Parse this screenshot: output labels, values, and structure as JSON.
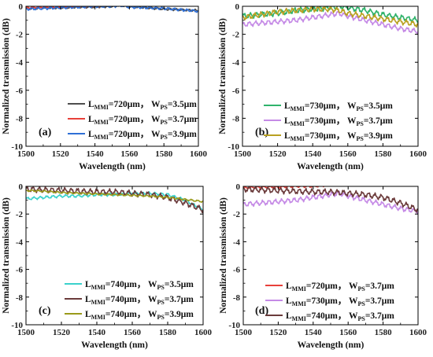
{
  "chart_data": [
    {
      "panel": "(a)",
      "type": "line",
      "xlabel": "Wavelength (nm)",
      "ylabel": "Normalized transmission (dB)",
      "xlim": [
        1500,
        1600
      ],
      "ylim": [
        -10,
        0
      ],
      "xticks": [
        1500,
        1520,
        1540,
        1560,
        1580,
        1600
      ],
      "yticks": [
        0,
        -2,
        -4,
        -6,
        -8,
        -10
      ],
      "legend_position": "bottom-right",
      "series": [
        {
          "name": "L_MMI=720μm， W_PS=3.5μm",
          "legend": {
            "a": "L",
            "as": "MMI",
            "b": "=720μm，  W",
            "bs": "PS",
            "c": "=3.5μm"
          },
          "color": "#4d4d4d",
          "x": [
            1500,
            1510,
            1520,
            1530,
            1540,
            1550,
            1555,
            1560,
            1570,
            1580,
            1590,
            1600
          ],
          "y": [
            -0.15,
            -0.1,
            -0.1,
            -0.05,
            -0.05,
            0.0,
            0.1,
            0.0,
            -0.1,
            -0.2,
            -0.25,
            -0.3
          ],
          "ripple": 0.06
        },
        {
          "name": "L_MMI=720μm， W_PS=3.7μm",
          "legend": {
            "a": "L",
            "as": "MMI",
            "b": "=720μm，  W",
            "bs": "PS",
            "c": "=3.7μm"
          },
          "color": "#e8403a",
          "x": [
            1500,
            1510,
            1520,
            1530,
            1540,
            1550,
            1555,
            1560,
            1570,
            1580,
            1590,
            1600
          ],
          "y": [
            -0.1,
            -0.05,
            -0.05,
            0.0,
            0.0,
            0.1,
            0.2,
            0.15,
            0.1,
            0.2,
            0.2,
            0.1
          ],
          "ripple": 0.06
        },
        {
          "name": "L_MMI=720μm， W_PS=3.9μm",
          "legend": {
            "a": "L",
            "as": "MMI",
            "b": "=720μm，  W",
            "bs": "PS",
            "c": "=3.9μm"
          },
          "color": "#2f6fd6",
          "x": [
            1500,
            1510,
            1520,
            1530,
            1540,
            1550,
            1555,
            1560,
            1570,
            1580,
            1590,
            1600
          ],
          "y": [
            -0.2,
            -0.15,
            -0.1,
            -0.05,
            0.0,
            0.0,
            0.05,
            -0.05,
            -0.1,
            -0.15,
            -0.25,
            -0.35
          ],
          "ripple": 0.07
        }
      ]
    },
    {
      "panel": "(b)",
      "type": "line",
      "xlabel": "Wavelength (nm)",
      "ylabel": "Normalized transmission (dB)",
      "xlim": [
        1500,
        1600
      ],
      "ylim": [
        -10,
        0
      ],
      "xticks": [
        1500,
        1520,
        1540,
        1560,
        1580,
        1600
      ],
      "yticks": [
        0,
        -2,
        -4,
        -6,
        -8,
        -10
      ],
      "legend_position": "bottom-right",
      "series": [
        {
          "name": "L_MMI=730μm， W_PS=3.5μm",
          "legend": {
            "a": "L",
            "as": "MMI",
            "b": "=730μm，  W",
            "bs": "PS",
            "c": "=3.5μm"
          },
          "color": "#2fb36b",
          "x": [
            1500,
            1510,
            1520,
            1530,
            1540,
            1550,
            1555,
            1560,
            1570,
            1580,
            1590,
            1600
          ],
          "y": [
            -0.7,
            -0.6,
            -0.5,
            -0.3,
            -0.2,
            -0.1,
            0.0,
            -0.1,
            -0.3,
            -0.6,
            -0.8,
            -1.0
          ],
          "ripple": 0.15
        },
        {
          "name": "L_MMI=730μm， W_PS=3.7μm",
          "legend": {
            "a": "L",
            "as": "MMI",
            "b": "=730μm，  W",
            "bs": "PS",
            "c": "=3.7μm"
          },
          "color": "#c58ae6",
          "x": [
            1500,
            1510,
            1520,
            1530,
            1540,
            1550,
            1555,
            1560,
            1570,
            1580,
            1590,
            1600
          ],
          "y": [
            -1.3,
            -1.2,
            -1.1,
            -1.0,
            -0.8,
            -0.6,
            -0.5,
            -0.7,
            -1.0,
            -1.3,
            -1.6,
            -1.8
          ],
          "ripple": 0.14
        },
        {
          "name": "L_MMI=730μm， W_PS=3.9μm",
          "legend": {
            "a": "L",
            "as": "MMI",
            "b": "=730μm，  W",
            "bs": "PS",
            "c": "=3.9μm"
          },
          "color": "#b9a021",
          "x": [
            1500,
            1510,
            1520,
            1530,
            1540,
            1550,
            1555,
            1560,
            1570,
            1580,
            1590,
            1600
          ],
          "y": [
            -0.8,
            -0.6,
            -0.4,
            -0.3,
            -0.2,
            -0.2,
            -0.3,
            -0.5,
            -0.7,
            -0.9,
            -1.1,
            -1.3
          ],
          "ripple": 0.15
        }
      ]
    },
    {
      "panel": "(c)",
      "type": "line",
      "xlabel": "Wavelength (nm)",
      "ylabel": "Normalized transmission (dB)",
      "xlim": [
        1500,
        1600
      ],
      "ylim": [
        -10,
        0
      ],
      "xticks": [
        1500,
        1520,
        1540,
        1560,
        1580,
        1600
      ],
      "yticks": [
        0,
        -2,
        -4,
        -6,
        -8,
        -10
      ],
      "legend_position": "bottom-left",
      "series": [
        {
          "name": "L_MMI=740μm， W_PS=3.5μm",
          "legend": {
            "a": "L",
            "as": "MMI",
            "b": "=740μm，  W",
            "bs": "PS",
            "c": "=3.5μm"
          },
          "color": "#3ad1cc",
          "x": [
            1500,
            1510,
            1520,
            1530,
            1540,
            1550,
            1560,
            1570,
            1580,
            1590,
            1600
          ],
          "y": [
            -0.9,
            -0.8,
            -0.7,
            -0.7,
            -0.6,
            -0.6,
            -0.5,
            -0.5,
            -0.6,
            -1.0,
            -1.7
          ],
          "ripple": 0.08
        },
        {
          "name": "L_MMI=740μm， W_PS=3.7μm",
          "legend": {
            "a": "L",
            "as": "MMI",
            "b": "=740μm，  W",
            "bs": "PS",
            "c": "=3.7μm"
          },
          "color": "#6b3b3b",
          "x": [
            1500,
            1510,
            1520,
            1530,
            1540,
            1550,
            1560,
            1570,
            1580,
            1590,
            1600
          ],
          "y": [
            -0.2,
            -0.25,
            -0.3,
            -0.35,
            -0.4,
            -0.4,
            -0.5,
            -0.6,
            -0.8,
            -1.2,
            -1.7
          ],
          "ripple": 0.16
        },
        {
          "name": "L_MMI=740μm， W_PS=3.9μm",
          "legend": {
            "a": "L",
            "as": "MMI",
            "b": "=740μm，  W",
            "bs": "PS",
            "c": "=3.9μm"
          },
          "color": "#9a9a1a",
          "x": [
            1500,
            1510,
            1520,
            1530,
            1540,
            1550,
            1560,
            1570,
            1580,
            1590,
            1600
          ],
          "y": [
            -0.3,
            -0.35,
            -0.45,
            -0.5,
            -0.55,
            -0.6,
            -0.65,
            -0.7,
            -0.8,
            -0.95,
            -1.1
          ],
          "ripple": 0.05
        }
      ]
    },
    {
      "panel": "(d)",
      "type": "line",
      "xlabel": "Wavelength (nm)",
      "ylabel": "Normalized transmission (dB)",
      "xlim": [
        1500,
        1600
      ],
      "ylim": [
        -10,
        0
      ],
      "xticks": [
        1500,
        1520,
        1540,
        1560,
        1580,
        1600
      ],
      "yticks": [
        0,
        -2,
        -4,
        -6,
        -8,
        -10
      ],
      "legend_position": "bottom-right",
      "series": [
        {
          "name": "L_MMI=720μm， W_PS=3.7μm",
          "legend": {
            "a": "L",
            "as": "MMI",
            "b": "=720μm，  W",
            "bs": "PS",
            "c": "=3.7μm"
          },
          "color": "#e8403a",
          "x": [
            1500,
            1510,
            1520,
            1530,
            1540,
            1550,
            1560,
            1570,
            1580,
            1590,
            1600
          ],
          "y": [
            -0.1,
            -0.05,
            -0.05,
            0.0,
            0.0,
            0.1,
            0.2,
            0.15,
            0.25,
            0.2,
            0.1
          ],
          "ripple": 0.06
        },
        {
          "name": "L_MMI=730μm， W_PS=3.7μm",
          "legend": {
            "a": "L",
            "as": "MMI",
            "b": "=730μm，  W",
            "bs": "PS",
            "c": "=3.7μm"
          },
          "color": "#c58ae6",
          "x": [
            1500,
            1510,
            1520,
            1530,
            1540,
            1550,
            1555,
            1560,
            1570,
            1580,
            1590,
            1600
          ],
          "y": [
            -1.3,
            -1.2,
            -1.1,
            -1.0,
            -0.8,
            -0.6,
            -0.5,
            -0.7,
            -1.0,
            -1.3,
            -1.6,
            -1.8
          ],
          "ripple": 0.14
        },
        {
          "name": "L_MMI=740μm， W_PS=3.7μm",
          "legend": {
            "a": "L",
            "as": "MMI",
            "b": "=740μm，  W",
            "bs": "PS",
            "c": "=3.7μm"
          },
          "color": "#6b3b3b",
          "x": [
            1500,
            1510,
            1520,
            1530,
            1540,
            1550,
            1560,
            1570,
            1580,
            1590,
            1600
          ],
          "y": [
            -0.2,
            -0.25,
            -0.3,
            -0.35,
            -0.4,
            -0.4,
            -0.5,
            -0.6,
            -0.8,
            -1.2,
            -1.7
          ],
          "ripple": 0.16
        }
      ]
    }
  ]
}
